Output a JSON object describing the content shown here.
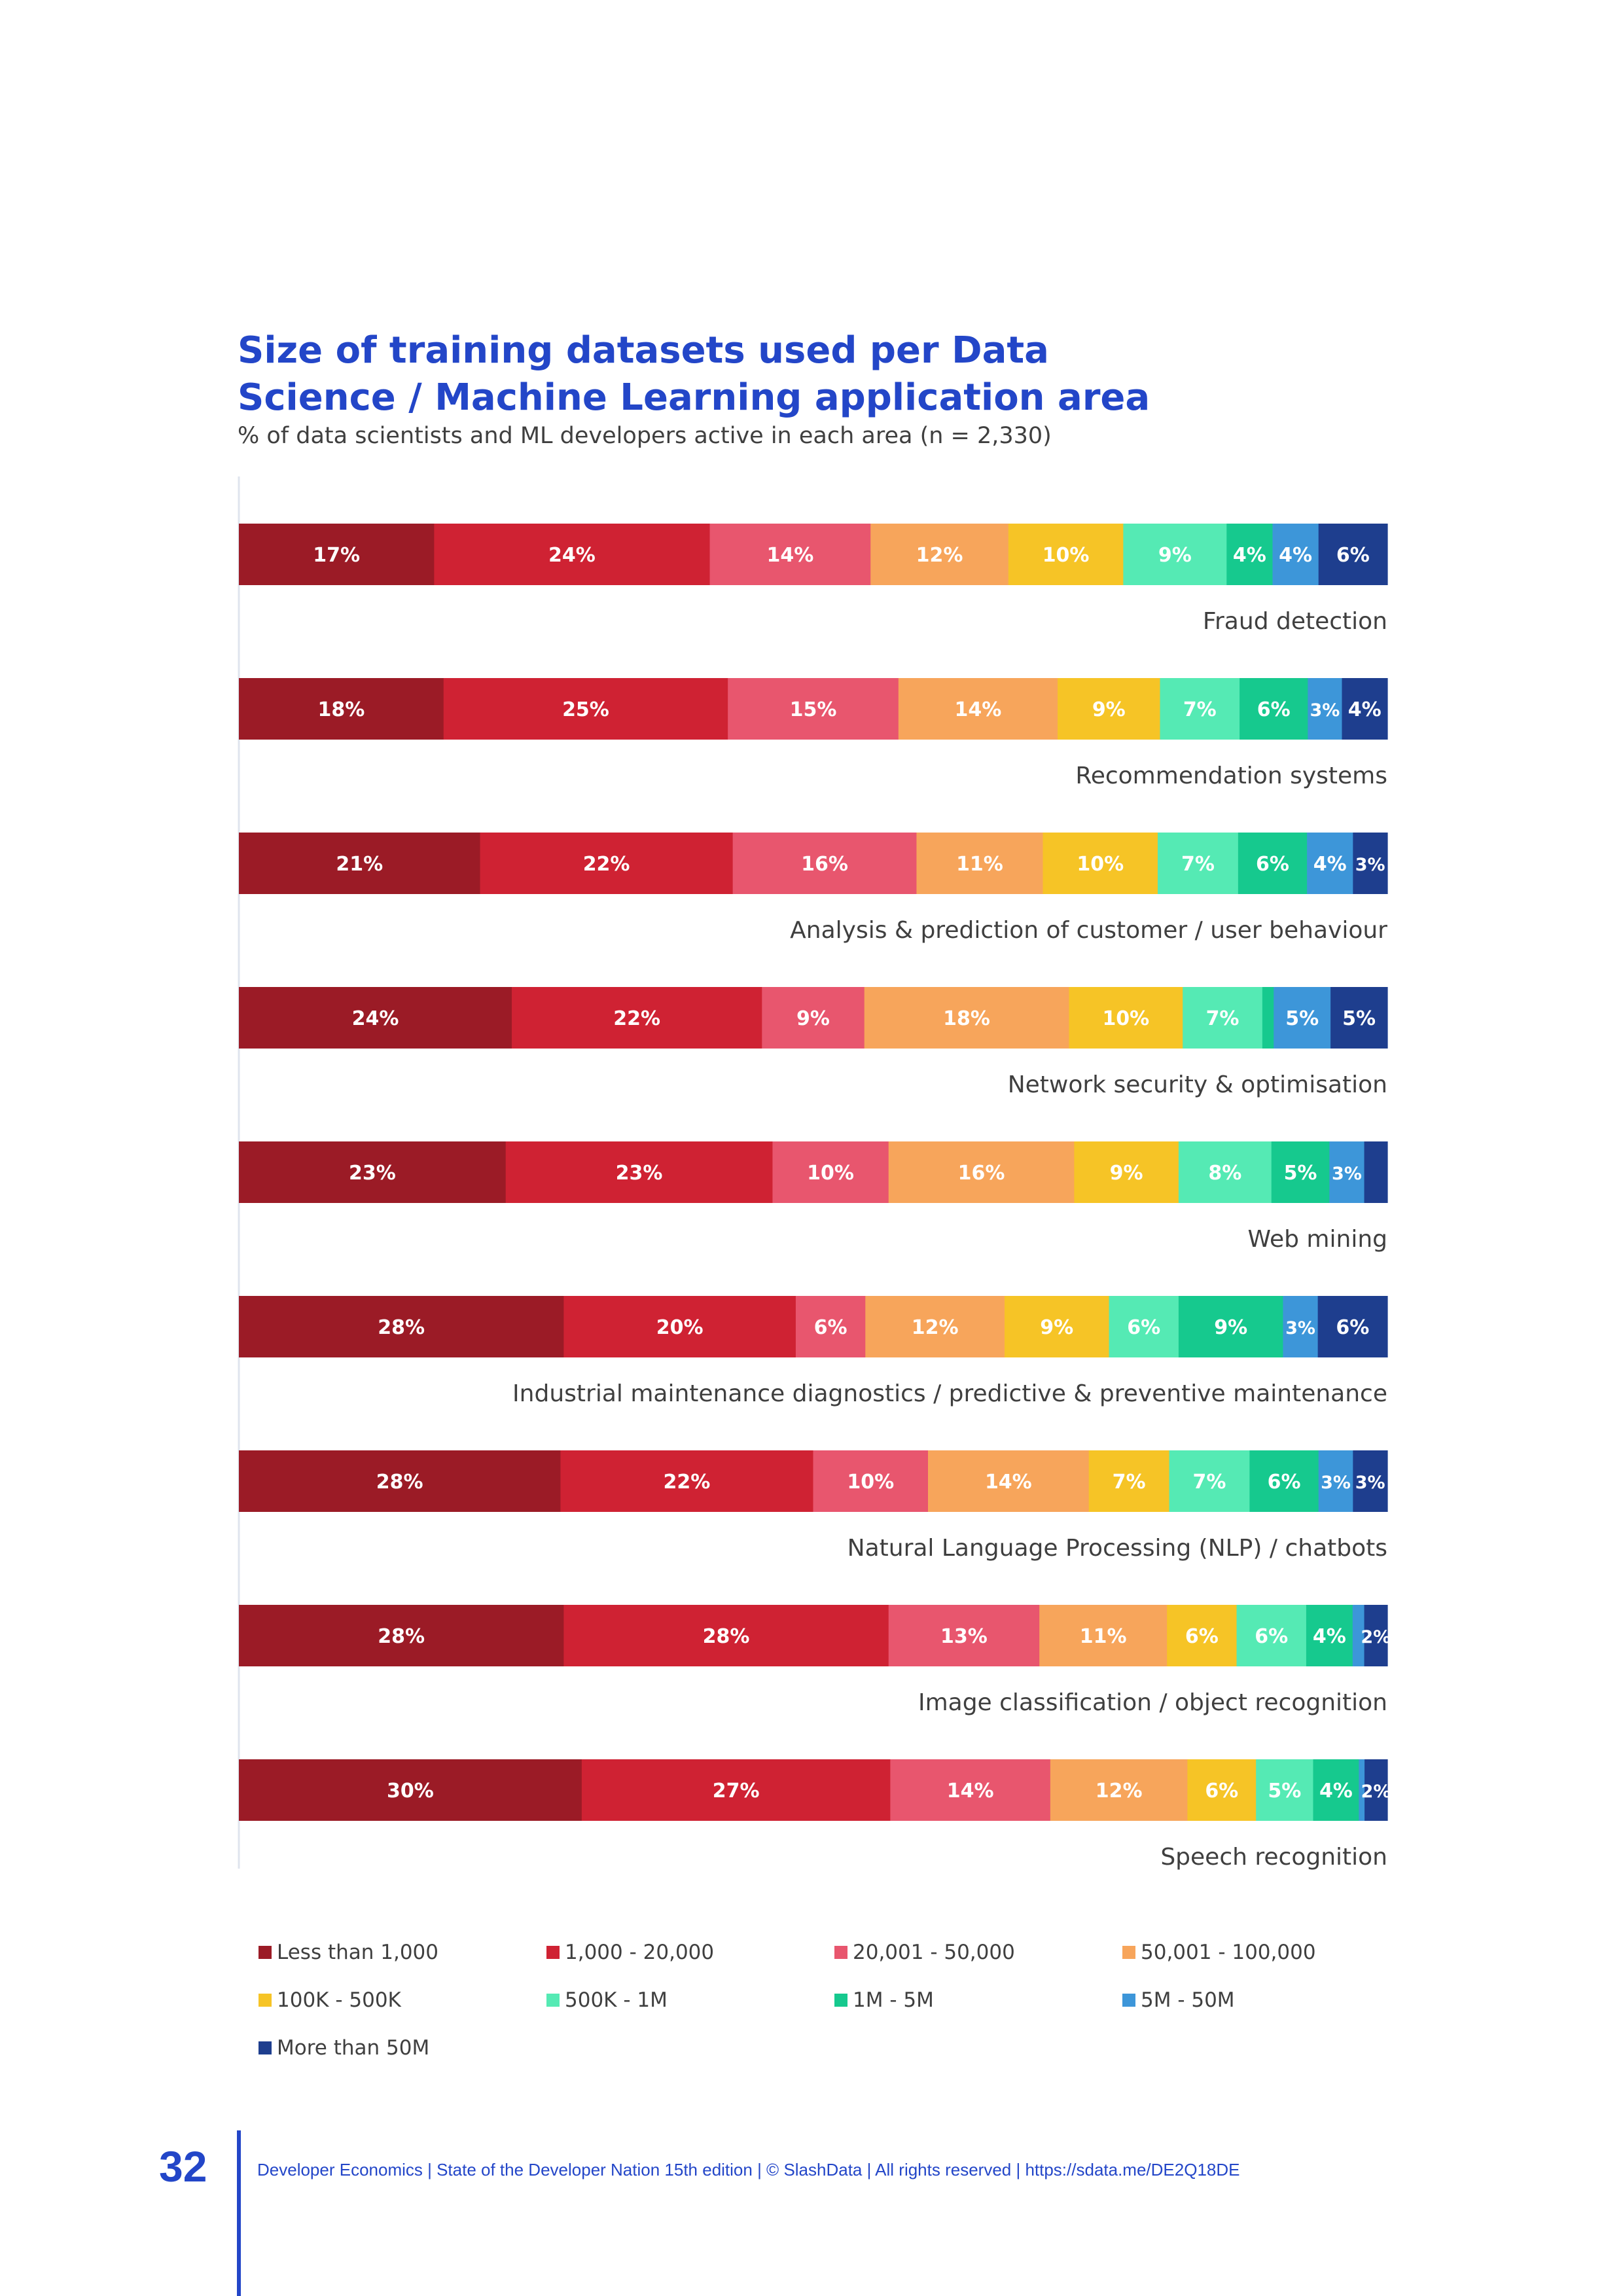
{
  "title": "Size of training datasets used per Data Science / Machine Learning application area",
  "subtitle": "% of data scientists and ML developers active in each area (n = 2,330)",
  "chart_data": {
    "type": "bar",
    "orientation": "horizontal",
    "stacked": true,
    "normalized": true,
    "xlim": [
      0,
      100
    ],
    "categories": [
      "Fraud detection",
      "Recommendation systems",
      "Analysis & prediction of customer / user behaviour",
      "Network security & optimisation",
      "Web mining",
      "Industrial maintenance diagnostics / predictive & preventive maintenance",
      "Natural Language Processing (NLP) / chatbots",
      "Image classification / object recognition",
      "Speech recognition"
    ],
    "series": [
      {
        "name": "Less than 1,000",
        "color": "#9b1b26",
        "values": [
          17,
          18,
          21,
          24,
          23,
          28,
          28,
          28,
          30
        ]
      },
      {
        "name": "1,000 - 20,000",
        "color": "#cf2233",
        "values": [
          24,
          25,
          22,
          22,
          23,
          20,
          22,
          28,
          27
        ]
      },
      {
        "name": "20,001 - 50,000",
        "color": "#e8566e",
        "values": [
          14,
          15,
          16,
          9,
          10,
          6,
          10,
          13,
          14
        ]
      },
      {
        "name": "50,001 - 100,000",
        "color": "#f7a55b",
        "values": [
          12,
          14,
          11,
          18,
          16,
          12,
          14,
          11,
          12
        ]
      },
      {
        "name": "100K - 500K",
        "color": "#f6c426",
        "values": [
          10,
          9,
          10,
          10,
          9,
          9,
          7,
          6,
          6
        ]
      },
      {
        "name": "500K - 1M",
        "color": "#55eab4",
        "values": [
          9,
          7,
          7,
          7,
          8,
          6,
          7,
          6,
          5
        ]
      },
      {
        "name": "1M - 5M",
        "color": "#16c98e",
        "values": [
          4,
          6,
          6,
          1,
          5,
          9,
          6,
          4,
          4
        ]
      },
      {
        "name": "5M - 50M",
        "color": "#3d96d9",
        "values": [
          4,
          3,
          4,
          5,
          3,
          3,
          3,
          1,
          0.5
        ]
      },
      {
        "name": "More than 50M",
        "color": "#1e3e8e",
        "values": [
          6,
          4,
          3,
          5,
          2,
          6,
          3,
          2,
          2
        ]
      }
    ],
    "labels": [
      [
        "17%",
        "24%",
        "14%",
        "12%",
        "10%",
        "9%",
        "4%",
        "4%",
        "6%"
      ],
      [
        "18%",
        "25%",
        "15%",
        "14%",
        "9%",
        "7%",
        "6%",
        "3%",
        "4%"
      ],
      [
        "21%",
        "22%",
        "16%",
        "11%",
        "10%",
        "7%",
        "6%",
        "4%",
        "3%"
      ],
      [
        "24%",
        "22%",
        "9%",
        "18%",
        "10%",
        "7%",
        "",
        "5%",
        "5%"
      ],
      [
        "23%",
        "23%",
        "10%",
        "16%",
        "9%",
        "8%",
        "5%",
        "3%",
        ""
      ],
      [
        "28%",
        "20%",
        "6%",
        "12%",
        "9%",
        "6%",
        "9%",
        "3%",
        "6%"
      ],
      [
        "28%",
        "22%",
        "10%",
        "14%",
        "7%",
        "7%",
        "6%",
        "3%",
        "3%"
      ],
      [
        "28%",
        "28%",
        "13%",
        "11%",
        "6%",
        "6%",
        "4%",
        "",
        "2%"
      ],
      [
        "30%",
        "27%",
        "14%",
        "12%",
        "6%",
        "5%",
        "4%",
        "",
        "2%"
      ]
    ]
  },
  "footer": {
    "page_number": "32",
    "text": "Developer Economics | State of the Developer Nation 15th edition | © SlashData | All rights reserved | https://sdata.me/DE2Q18DE"
  }
}
